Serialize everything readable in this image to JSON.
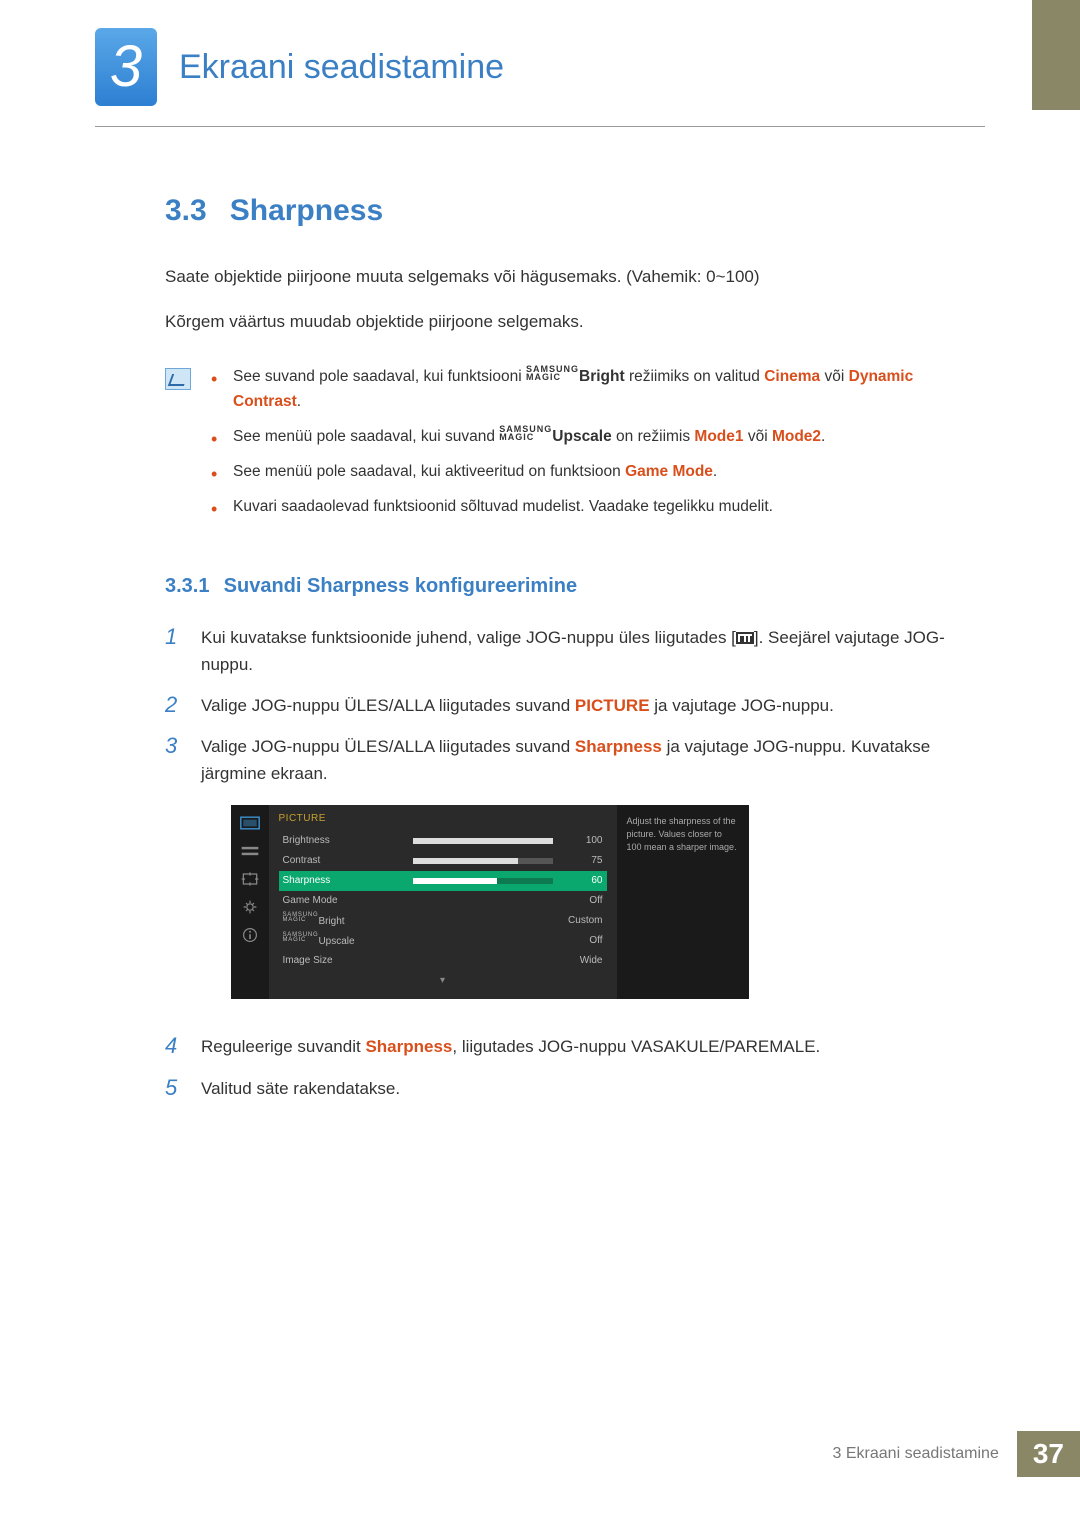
{
  "colors": {
    "accent_blue": "#3b7fc4",
    "accent_orange": "#d94f1c",
    "osd_green": "#0aa86f",
    "osd_gold": "#c8a030",
    "bar_khaki": "#8a8766"
  },
  "chapter": {
    "num": "3",
    "title": "Ekraani seadistamine"
  },
  "section": {
    "num": "3.3",
    "title": "Sharpness",
    "para1": "Saate objektide piirjoone muuta selgemaks või hägusemaks. (Vahemik: 0~100)",
    "para2": "Kõrgem väärtus muudab objektide piirjoone selgemaks."
  },
  "notes": {
    "n1_a": "See suvand pole saadaval, kui funktsiooni ",
    "n1_m_top": "SAMSUNG",
    "n1_m_bot": "MAGIC",
    "n1_m_suf": "Bright",
    "n1_b": " režiimiks on valitud ",
    "n1_c": "Cinema",
    "n1_d": " või ",
    "n1_e": "Dynamic Contrast",
    "n1_f": ".",
    "n2_a": "See menüü pole saadaval, kui suvand ",
    "n2_m_top": "SAMSUNG",
    "n2_m_bot": "MAGIC",
    "n2_m_suf": "Upscale",
    "n2_b": " on režiimis ",
    "n2_c": "Mode1",
    "n2_d": " või ",
    "n2_e": "Mode2",
    "n2_f": ".",
    "n3_a": "See menüü pole saadaval, kui aktiveeritud on funktsioon ",
    "n3_b": "Game Mode",
    "n3_c": ".",
    "n4": "Kuvari saadaolevad funktsioonid sõltuvad mudelist. Vaadake tegelikku mudelit."
  },
  "subsection": {
    "num": "3.3.1",
    "title": "Suvandi Sharpness konfigureerimine"
  },
  "steps": {
    "s1a": "Kui kuvatakse funktsioonide juhend, valige JOG-nuppu üles liigutades [",
    "s1b": "]. Seejärel vajutage JOG-nuppu.",
    "s2a": "Valige JOG-nuppu ÜLES/ALLA liigutades suvand ",
    "s2b": "PICTURE",
    "s2c": " ja vajutage JOG-nuppu.",
    "s3a": "Valige JOG-nuppu ÜLES/ALLA liigutades suvand ",
    "s3b": "Sharpness",
    "s3c": " ja vajutage JOG-nuppu. Kuvatakse järgmine ekraan.",
    "s4a": "Reguleerige suvandit ",
    "s4b": "Sharpness",
    "s4c": ", liigutades JOG-nuppu VASAKULE/PAREMALE.",
    "s5": "Valitud säte rakendatakse."
  },
  "osd": {
    "title": "PICTURE",
    "help": "Adjust the sharpness of the picture. Values closer to 100 mean a sharper image.",
    "rows": [
      {
        "label": "Brightness",
        "value": "100",
        "bar_pct": 100,
        "selected": false
      },
      {
        "label": "Contrast",
        "value": "75",
        "bar_pct": 75,
        "selected": false
      },
      {
        "label": "Sharpness",
        "value": "60",
        "bar_pct": 60,
        "selected": true
      },
      {
        "label": "Game Mode",
        "value": "Off",
        "selected": false
      },
      {
        "label_prefix_top": "SAMSUNG",
        "label_prefix_bot": "MAGIC",
        "label_suf": "Bright",
        "value": "Custom",
        "selected": false
      },
      {
        "label_prefix_top": "SAMSUNG",
        "label_prefix_bot": "MAGIC",
        "label_suf": "Upscale",
        "value": "Off",
        "selected": false
      },
      {
        "label": "Image Size",
        "value": "Wide",
        "selected": false
      }
    ]
  },
  "footer": {
    "text": "3 Ekraani seadistamine",
    "page": "37"
  }
}
